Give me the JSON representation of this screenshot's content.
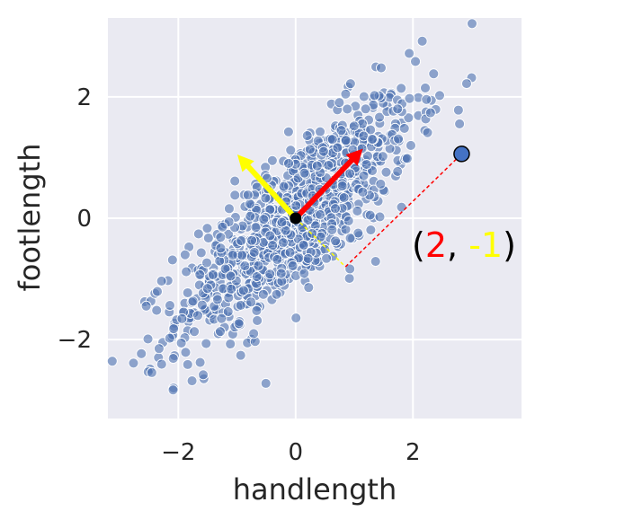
{
  "chart_data": {
    "type": "scatter",
    "title": "",
    "xlabel": "handlength",
    "ylabel": "footlength",
    "xlim": [
      -3.2,
      3.85
    ],
    "ylim": [
      -3.3,
      3.3
    ],
    "xticks": [
      -2,
      0,
      2
    ],
    "yticks": [
      -2,
      0,
      2
    ],
    "xtick_labels": [
      "−2",
      "0",
      "2"
    ],
    "ytick_labels": [
      "−2",
      "0",
      "2"
    ],
    "grid": true,
    "background": "#eaeaf2",
    "point_color": "#4c72b0",
    "samples": {
      "count": 1000,
      "correlation": 0.8,
      "description_of_cloud": "bivariate normal centered at origin",
      "points": []
    },
    "annotations": {
      "origin": [
        0,
        0
      ],
      "principal_vector": {
        "to": [
          1.05,
          1.05
        ],
        "color": "#ff0000"
      },
      "secondary_vector": {
        "to": [
          -0.9,
          0.95
        ],
        "color": "#ffff00"
      },
      "highlighted_point": {
        "x": 2.83,
        "y": 1.06,
        "fill": "#4472c4"
      },
      "projection_foot": [
        0.85,
        -0.8
      ],
      "coordinate_label": {
        "open": "(",
        "first": "2",
        "sep": ", ",
        "second": "-1",
        "close": ")",
        "first_color": "#ff0000",
        "second_color": "#ffff00"
      }
    }
  }
}
